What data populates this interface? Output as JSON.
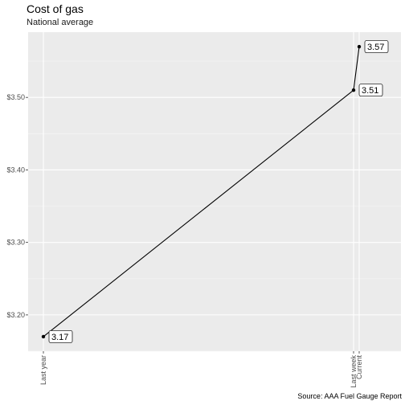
{
  "chart_data": {
    "type": "line",
    "title": "Cost of gas",
    "subtitle": "National average",
    "caption": "Source: AAA Fuel Gauge Report",
    "xlabel": "",
    "ylabel": "",
    "points": [
      {
        "x": "Last year",
        "value": 3.17,
        "label": "3.17"
      },
      {
        "x": "Last week",
        "value": 3.51,
        "label": "3.51"
      },
      {
        "x": "Current",
        "value": 3.57,
        "label": "3.57"
      }
    ],
    "yticks": [
      {
        "value": 3.2,
        "label": "$3.20"
      },
      {
        "value": 3.3,
        "label": "$3.30"
      },
      {
        "value": 3.4,
        "label": "$3.40"
      },
      {
        "value": 3.5,
        "label": "$3.50"
      }
    ],
    "ylim": [
      3.15,
      3.59
    ],
    "grid": true,
    "legend": "none"
  }
}
